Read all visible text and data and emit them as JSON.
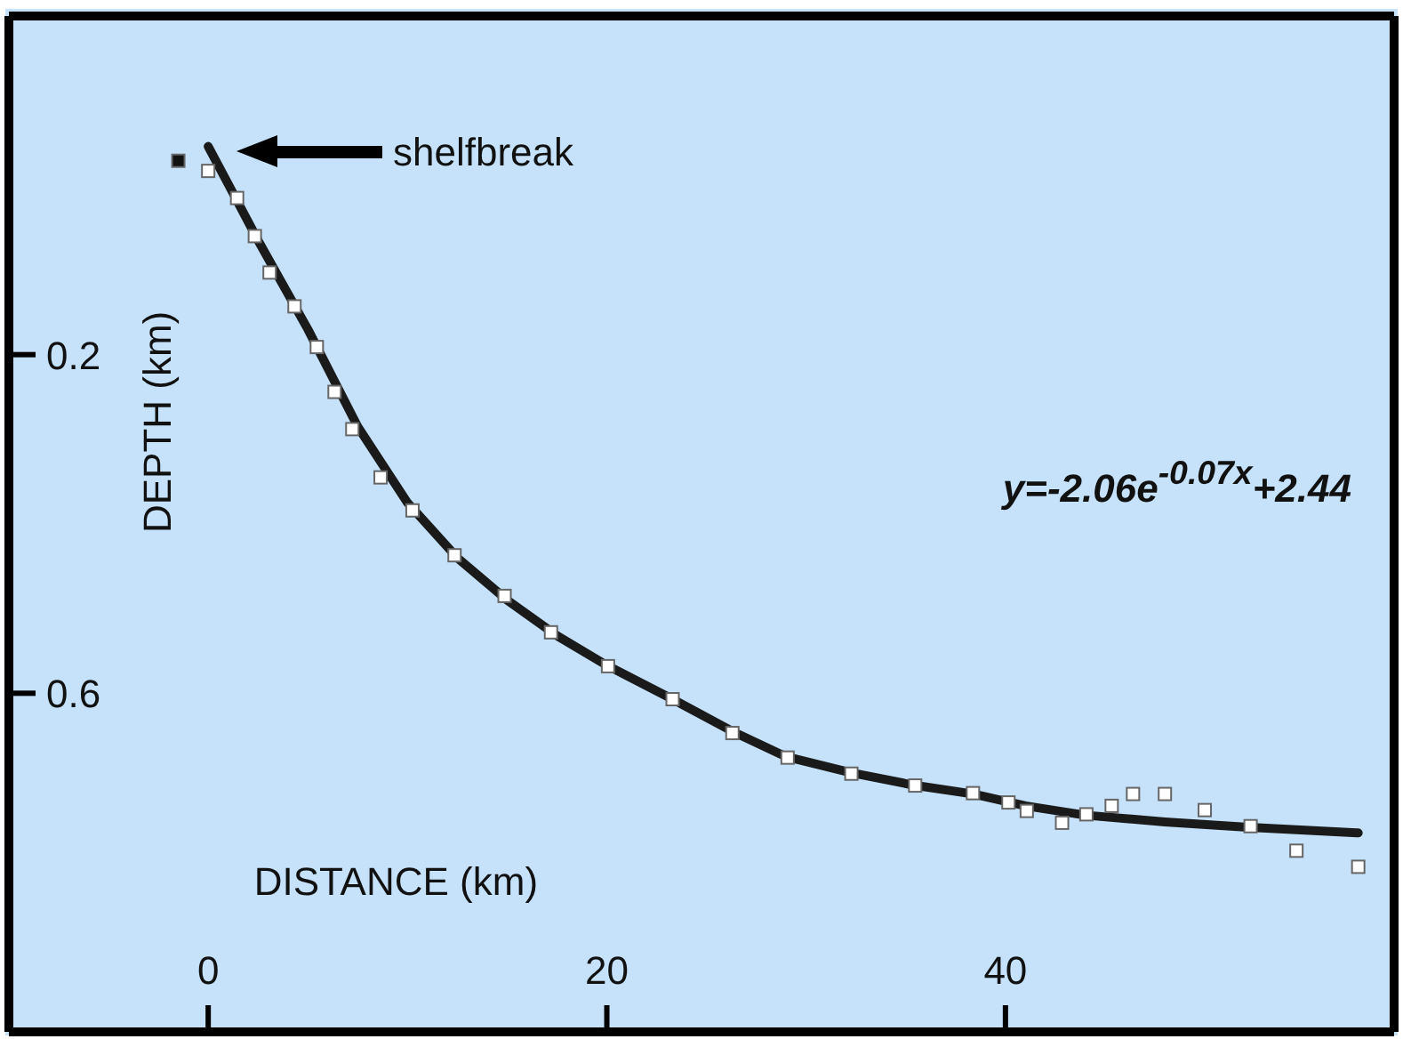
{
  "chart_data": {
    "type": "scatter",
    "xlabel": "DISTANCE (km)",
    "ylabel": "DEPTH (km)",
    "xlim": [
      -10,
      59.5
    ],
    "xticks": [
      0,
      20,
      40
    ],
    "ylim": [
      1.0,
      -0.2
    ],
    "yticks": [
      0.2,
      0.6
    ],
    "grid": false,
    "legend": false,
    "marker": "square",
    "annotations": [
      "shelfbreak",
      "y=-2.06e$^{-0.07x}$+2.44"
    ],
    "series": [
      {
        "type": "line",
        "marker": "none",
        "color": "#1a1a1a",
        "x": [
          0,
          2.5,
          5,
          7.5,
          10,
          12.5,
          15,
          17.5,
          20,
          23.3,
          26.3,
          29,
          32.3,
          35.5,
          38.4,
          41,
          44,
          48,
          52,
          57.7
        ],
        "values": [
          -0.046,
          0.065,
          0.17,
          0.285,
          0.375,
          0.44,
          0.49,
          0.532,
          0.567,
          0.607,
          0.645,
          0.675,
          0.694,
          0.709,
          0.719,
          0.733,
          0.744,
          0.752,
          0.758,
          0.765
        ]
      },
      {
        "color": "#ffffff",
        "x": [
          0,
          1.45,
          2.34,
          3.08,
          4.33,
          5.45,
          6.34,
          7.23,
          8.65,
          10.25,
          12.36,
          14.87,
          17.2,
          20.06,
          23.3,
          26.3,
          29.07,
          32.27,
          35.47,
          38.37,
          40.15,
          41.07,
          42.84,
          44.06,
          45.33,
          46.4,
          48.0,
          50.0,
          52.3,
          54.6,
          57.7
        ],
        "values": [
          -0.017,
          0.015,
          0.06,
          0.103,
          0.143,
          0.191,
          0.244,
          0.288,
          0.345,
          0.384,
          0.437,
          0.485,
          0.528,
          0.568,
          0.607,
          0.647,
          0.676,
          0.695,
          0.709,
          0.718,
          0.729,
          0.739,
          0.753,
          0.743,
          0.733,
          0.719,
          0.719,
          0.738,
          0.757,
          0.786,
          0.805
        ]
      },
      {
        "color": "#111111",
        "x": [
          -1.5
        ],
        "values": [
          -0.029
        ]
      }
    ]
  }
}
